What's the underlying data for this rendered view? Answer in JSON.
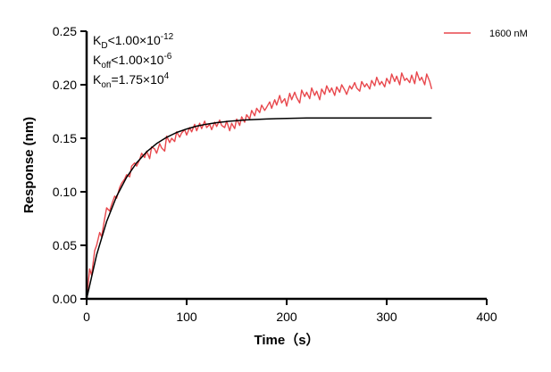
{
  "chart_data": {
    "type": "line",
    "title": "",
    "xlabel": "Time（s）",
    "ylabel": "Response (nm)",
    "xlim": [
      0,
      400
    ],
    "ylim": [
      0,
      0.25
    ],
    "x_ticks": [
      "0",
      "100",
      "200",
      "300",
      "400"
    ],
    "y_ticks": [
      "0.00",
      "0.05",
      "0.10",
      "0.15",
      "0.20",
      "0.25"
    ],
    "grid": false,
    "legend": {
      "position": "top-right",
      "entries": [
        "1600 nM"
      ]
    },
    "annotations": [
      {
        "base": "K",
        "sub": "D",
        "rel": "<1.00×10",
        "sup": "-12"
      },
      {
        "base": "K",
        "sub": "off",
        "rel": "<1.00×10",
        "sup": "-6"
      },
      {
        "base": "K",
        "sub": "on",
        "rel": "=1.75×10",
        "sup": "4"
      }
    ],
    "series": [
      {
        "name": "1600 nM",
        "color": "#e8474c",
        "x": [
          0,
          3,
          5,
          8,
          10,
          13,
          15,
          18,
          20,
          23,
          25,
          28,
          30,
          33,
          35,
          38,
          40,
          43,
          45,
          48,
          50,
          53,
          55,
          58,
          60,
          63,
          65,
          68,
          70,
          73,
          75,
          78,
          80,
          83,
          85,
          88,
          90,
          93,
          95,
          98,
          100,
          103,
          105,
          108,
          110,
          113,
          115,
          118,
          120,
          123,
          125,
          128,
          130,
          133,
          135,
          138,
          140,
          143,
          145,
          148,
          150,
          153,
          155,
          158,
          160,
          163,
          165,
          168,
          170,
          173,
          175,
          178,
          180,
          183,
          185,
          188,
          190,
          193,
          195,
          198,
          200,
          203,
          205,
          208,
          210,
          213,
          215,
          218,
          220,
          223,
          225,
          228,
          230,
          233,
          235,
          238,
          240,
          243,
          245,
          248,
          250,
          253,
          255,
          258,
          260,
          263,
          265,
          268,
          270,
          273,
          275,
          278,
          280,
          283,
          285,
          288,
          290,
          293,
          295,
          298,
          300,
          303,
          305,
          308,
          310,
          313,
          315,
          318,
          320,
          323,
          325,
          328,
          330,
          333,
          335,
          338,
          340,
          343,
          345
        ],
        "y": [
          0.0,
          0.028,
          0.022,
          0.045,
          0.05,
          0.062,
          0.058,
          0.075,
          0.085,
          0.082,
          0.088,
          0.096,
          0.094,
          0.104,
          0.108,
          0.112,
          0.116,
          0.114,
          0.124,
          0.127,
          0.124,
          0.13,
          0.136,
          0.132,
          0.138,
          0.131,
          0.142,
          0.14,
          0.136,
          0.145,
          0.141,
          0.138,
          0.152,
          0.146,
          0.15,
          0.147,
          0.156,
          0.151,
          0.155,
          0.158,
          0.153,
          0.16,
          0.156,
          0.163,
          0.157,
          0.164,
          0.159,
          0.166,
          0.16,
          0.163,
          0.158,
          0.165,
          0.161,
          0.167,
          0.162,
          0.16,
          0.166,
          0.157,
          0.164,
          0.159,
          0.168,
          0.162,
          0.17,
          0.165,
          0.172,
          0.168,
          0.176,
          0.171,
          0.178,
          0.174,
          0.181,
          0.176,
          0.179,
          0.184,
          0.178,
          0.186,
          0.181,
          0.19,
          0.183,
          0.187,
          0.18,
          0.192,
          0.186,
          0.193,
          0.188,
          0.183,
          0.195,
          0.189,
          0.193,
          0.187,
          0.197,
          0.19,
          0.194,
          0.186,
          0.196,
          0.191,
          0.199,
          0.193,
          0.197,
          0.19,
          0.198,
          0.193,
          0.2,
          0.195,
          0.191,
          0.199,
          0.196,
          0.202,
          0.197,
          0.194,
          0.203,
          0.198,
          0.201,
          0.196,
          0.204,
          0.199,
          0.207,
          0.2,
          0.203,
          0.198,
          0.206,
          0.201,
          0.21,
          0.203,
          0.208,
          0.2,
          0.211,
          0.204,
          0.206,
          0.202,
          0.209,
          0.201,
          0.212,
          0.204,
          0.207,
          0.2,
          0.21,
          0.203,
          0.196
        ]
      },
      {
        "name": "",
        "color": "#000000",
        "x": [
          0,
          10,
          20,
          30,
          40,
          50,
          60,
          70,
          80,
          90,
          100,
          110,
          120,
          130,
          140,
          150,
          160,
          170,
          180,
          190,
          200,
          220,
          345
        ],
        "y": [
          0,
          0.0411,
          0.0722,
          0.0958,
          0.1136,
          0.1271,
          0.1373,
          0.1451,
          0.1509,
          0.1554,
          0.1587,
          0.1613,
          0.1632,
          0.1646,
          0.1657,
          0.1665,
          0.1672,
          0.1676,
          0.168,
          0.1683,
          0.1685,
          0.169,
          0.169
        ]
      }
    ]
  }
}
